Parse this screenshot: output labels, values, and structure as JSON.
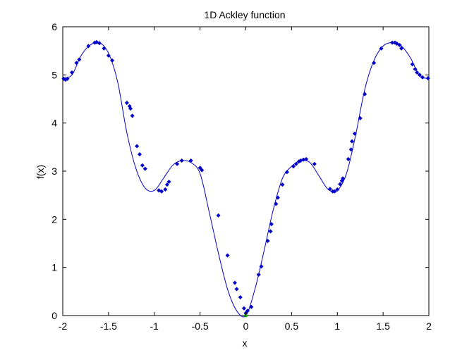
{
  "chart_data": {
    "type": "line",
    "title": "1D Ackley function",
    "xlabel": "x",
    "ylabel": "f(x)",
    "xlim": [
      -2,
      2
    ],
    "ylim": [
      0,
      6
    ],
    "x_ticks": [
      -2,
      -1.5,
      -1,
      -0.5,
      0,
      0.5,
      1,
      1.5,
      2
    ],
    "x_tick_labels": [
      "-2",
      "-1.5",
      "-1",
      "-0.5",
      "0",
      "0.5",
      "1",
      "1.5",
      "2"
    ],
    "y_ticks": [
      0,
      1,
      2,
      3,
      4,
      5,
      6
    ],
    "y_tick_labels": [
      "0",
      "1",
      "2",
      "3",
      "4",
      "5",
      "6"
    ],
    "grid": false,
    "series": [
      {
        "role": "curve",
        "color": "#0000c8",
        "x": [
          -2.0,
          -1.9,
          -1.8,
          -1.7,
          -1.6,
          -1.5,
          -1.4,
          -1.3,
          -1.2,
          -1.1,
          -1.0,
          -0.9,
          -0.8,
          -0.7,
          -0.6,
          -0.5,
          -0.4,
          -0.3,
          -0.2,
          -0.1,
          0.0,
          0.1,
          0.2,
          0.3,
          0.4,
          0.5,
          0.6,
          0.7,
          0.8,
          0.9,
          1.0,
          1.1,
          1.2,
          1.3,
          1.4,
          1.5,
          1.6,
          1.7,
          1.8,
          1.9,
          2.0
        ],
        "y": [
          4.93,
          5.0,
          5.4,
          5.62,
          5.67,
          5.45,
          4.85,
          3.8,
          3.05,
          2.65,
          2.6,
          2.85,
          3.12,
          3.22,
          3.18,
          2.95,
          2.15,
          1.3,
          0.55,
          0.1,
          0.0,
          0.55,
          1.35,
          2.2,
          2.85,
          3.1,
          3.22,
          3.18,
          2.9,
          2.62,
          2.6,
          2.95,
          3.75,
          4.7,
          5.3,
          5.6,
          5.67,
          5.6,
          5.35,
          4.98,
          4.93
        ]
      },
      {
        "role": "samples",
        "color": "#0000c8",
        "marker": "diamond",
        "x": [
          -1.99,
          -1.97,
          -1.95,
          -1.9,
          -1.85,
          -1.82,
          -1.72,
          -1.65,
          -1.63,
          -1.6,
          -1.55,
          -1.5,
          -1.46,
          -1.3,
          -1.27,
          -1.26,
          -1.24,
          -1.19,
          -1.16,
          -1.13,
          -1.1,
          -0.95,
          -0.92,
          -0.88,
          -0.86,
          -0.84,
          -0.75,
          -0.7,
          -0.6,
          -0.5,
          -0.48,
          -0.3,
          -0.2,
          -0.12,
          -0.1,
          -0.06,
          -0.02,
          0.0,
          0.02,
          0.06,
          0.14,
          0.17,
          0.24,
          0.27,
          0.28,
          0.33,
          0.35,
          0.4,
          0.45,
          0.52,
          0.55,
          0.58,
          0.6,
          0.63,
          0.66,
          0.75,
          0.92,
          0.95,
          0.97,
          1.0,
          1.03,
          1.05,
          1.06,
          1.12,
          1.15,
          1.16,
          1.19,
          1.25,
          1.3,
          1.4,
          1.48,
          1.6,
          1.63,
          1.65,
          1.68,
          1.7,
          1.82,
          1.85,
          1.87,
          1.9,
          1.93,
          1.99
        ],
        "y": [
          4.92,
          4.9,
          4.92,
          5.05,
          5.25,
          5.32,
          5.6,
          5.67,
          5.68,
          5.66,
          5.55,
          5.4,
          5.3,
          4.42,
          4.35,
          4.3,
          4.15,
          3.52,
          3.35,
          3.12,
          3.05,
          2.6,
          2.58,
          2.62,
          2.72,
          2.78,
          3.15,
          3.22,
          3.22,
          3.07,
          3.02,
          2.08,
          1.25,
          0.68,
          0.55,
          0.38,
          0.15,
          0.05,
          0.1,
          0.18,
          0.85,
          1.02,
          1.55,
          1.75,
          1.9,
          2.32,
          2.45,
          2.72,
          2.98,
          3.1,
          3.15,
          3.2,
          3.22,
          3.24,
          3.25,
          3.15,
          2.63,
          2.58,
          2.58,
          2.62,
          2.73,
          2.8,
          2.85,
          3.25,
          3.45,
          3.62,
          3.78,
          4.1,
          4.6,
          5.25,
          5.55,
          5.67,
          5.67,
          5.65,
          5.62,
          5.55,
          5.22,
          5.12,
          5.05,
          5.0,
          4.95,
          4.93
        ]
      },
      {
        "role": "minimum-marker",
        "color": "#00b000",
        "marker": "dot",
        "x": [
          0.0
        ],
        "y": [
          0.0
        ]
      }
    ]
  }
}
